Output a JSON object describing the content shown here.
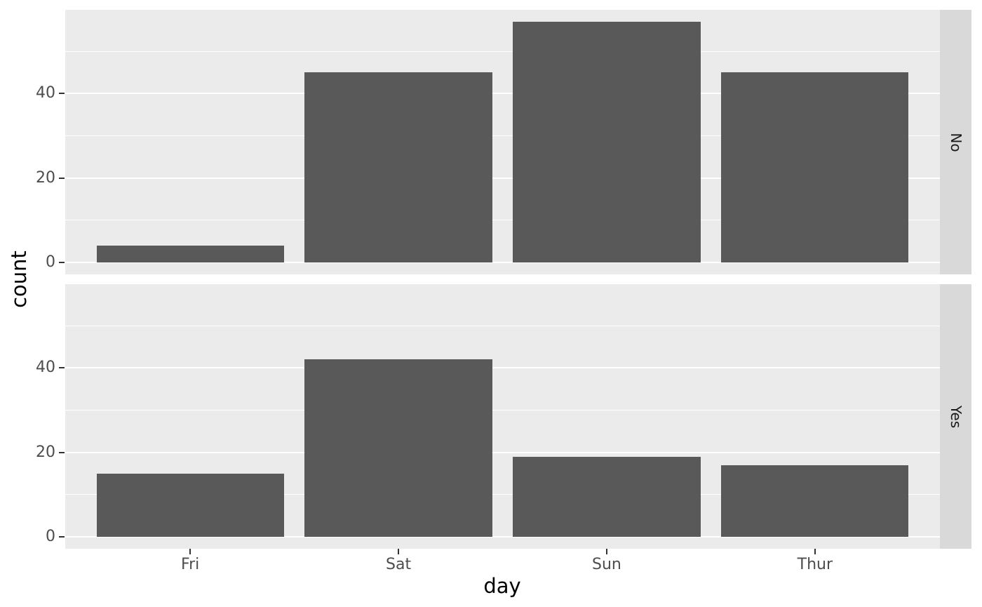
{
  "chart_data": {
    "type": "bar",
    "title": "",
    "xlabel": "day",
    "ylabel": "count",
    "categories": [
      "Fri",
      "Sat",
      "Sun",
      "Thur"
    ],
    "facets": [
      {
        "label": "No",
        "values": [
          4,
          45,
          57,
          45
        ]
      },
      {
        "label": "Yes",
        "values": [
          15,
          42,
          19,
          17
        ]
      }
    ],
    "facet_strip_position": "right",
    "yticks": [
      0,
      20,
      40
    ],
    "ytick_labels": [
      "0",
      "20",
      "40"
    ],
    "yminor": [
      10,
      30,
      50
    ],
    "ylim": [
      -2.85,
      59.85
    ],
    "bar_width_fraction": 0.9,
    "x_axis_range_units": [
      0.4,
      4.6
    ],
    "grid": true,
    "legend": "none",
    "colors": {
      "bar_fill": "#595959",
      "panel_background": "#EBEBEB",
      "grid_major": "#FFFFFF",
      "grid_minor": "#FFFFFF",
      "strip_background": "#D9D9D9",
      "strip_text": "#1A1A1A",
      "tick_text": "#4D4D4D",
      "axis_title_text": "#000000",
      "tick_mark": "#333333",
      "figure_background": "#FFFFFF"
    }
  }
}
